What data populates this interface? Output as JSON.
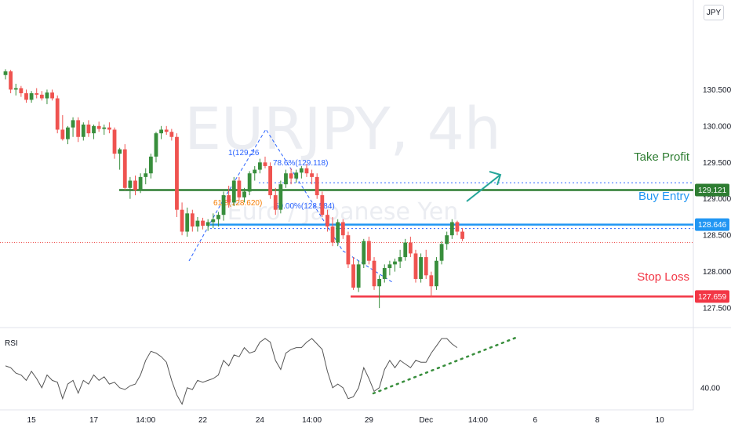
{
  "symbol_badge": "JPY",
  "watermark": {
    "title": "EURJPY, 4h",
    "subtitle": "Euro / Japanese Yen"
  },
  "annotations": {
    "take_profit": "Take Profit",
    "buy_entry": "Buy Entry",
    "stop_loss": "Stop Loss",
    "fib_top": "1(129.26",
    "fib_786": "78.6%(129.118)",
    "fib_618": "61.8(128.620)",
    "fib_50": "50.00%(128.584)"
  },
  "price_tags": {
    "take_profit": "129.121",
    "buy_entry": "128.646",
    "stop_loss": "127.659"
  },
  "rsi_label": "RSI",
  "colors": {
    "up": "#26a69a",
    "up_dark": "#388e3c",
    "down": "#ef5350",
    "take_profit": "#2e7d32",
    "buy_entry": "#2196f3",
    "stop_loss": "#f23645",
    "fib_blue": "#2962ff",
    "fib_orange": "#f57c00"
  },
  "chart_data": [
    {
      "type": "candlestick",
      "title": "EURJPY, 4h",
      "y_ticks": [
        "130.500",
        "130.000",
        "129.500",
        "129.000",
        "128.500",
        "128.000",
        "127.500"
      ],
      "y_tick_values": [
        130.5,
        130.0,
        129.5,
        129.0,
        128.5,
        128.0,
        127.5
      ],
      "ylim": [
        127.34,
        131.3
      ],
      "x_ticks": [
        "15",
        "17",
        "14:00",
        "22",
        "24",
        "14:00",
        "29",
        "Dec",
        "14:00",
        "6",
        "8",
        "10"
      ],
      "x_tick_index": [
        5,
        17,
        27,
        38,
        49,
        59,
        70,
        81,
        91,
        102,
        114,
        126
      ],
      "levels": {
        "take_profit": 129.121,
        "buy_entry": 128.646,
        "stop_loss": 127.659,
        "current": 128.4
      },
      "ohlc": [
        [
          130.7,
          130.78,
          130.64,
          130.75
        ],
        [
          130.75,
          130.77,
          130.45,
          130.5
        ],
        [
          130.5,
          130.58,
          130.42,
          130.52
        ],
        [
          130.52,
          130.55,
          130.4,
          130.45
        ],
        [
          130.45,
          130.5,
          130.32,
          130.36
        ],
        [
          130.36,
          130.48,
          130.32,
          130.45
        ],
        [
          130.45,
          130.52,
          130.38,
          130.43
        ],
        [
          130.43,
          130.48,
          130.35,
          130.38
        ],
        [
          130.38,
          130.5,
          130.3,
          130.46
        ],
        [
          130.46,
          130.5,
          130.35,
          130.38
        ],
        [
          130.38,
          130.42,
          129.9,
          129.95
        ],
        [
          129.95,
          130.15,
          129.8,
          129.82
        ],
        [
          129.82,
          130.0,
          129.75,
          129.98
        ],
        [
          129.98,
          130.12,
          129.85,
          130.08
        ],
        [
          130.08,
          130.12,
          129.78,
          129.85
        ],
        [
          129.85,
          130.05,
          129.8,
          130.02
        ],
        [
          130.02,
          130.08,
          129.85,
          129.9
        ],
        [
          129.9,
          130.02,
          129.82,
          130.0
        ],
        [
          130.0,
          130.06,
          129.92,
          129.96
        ],
        [
          129.96,
          130.02,
          129.88,
          129.98
        ],
        [
          129.98,
          130.05,
          129.9,
          129.95
        ],
        [
          129.95,
          129.98,
          129.55,
          129.62
        ],
        [
          129.62,
          129.7,
          129.4,
          129.68
        ],
        [
          129.68,
          129.75,
          129.12,
          129.15
        ],
        [
          129.15,
          129.3,
          129.0,
          129.25
        ],
        [
          129.25,
          129.32,
          129.05,
          129.12
        ],
        [
          129.12,
          129.35,
          129.08,
          129.3
        ],
        [
          129.3,
          129.42,
          129.2,
          129.35
        ],
        [
          129.35,
          129.62,
          129.28,
          129.58
        ],
        [
          129.58,
          129.92,
          129.5,
          129.9
        ],
        [
          129.9,
          130.0,
          129.82,
          129.95
        ],
        [
          129.95,
          130.0,
          129.88,
          129.92
        ],
        [
          129.92,
          129.96,
          129.8,
          129.85
        ],
        [
          129.85,
          129.9,
          128.75,
          128.85
        ],
        [
          128.85,
          128.95,
          128.5,
          128.55
        ],
        [
          128.55,
          128.88,
          128.48,
          128.8
        ],
        [
          128.8,
          128.85,
          128.55,
          128.62
        ],
        [
          128.62,
          128.75,
          128.55,
          128.7
        ],
        [
          128.7,
          128.74,
          128.58,
          128.63
        ],
        [
          128.63,
          128.72,
          128.56,
          128.68
        ],
        [
          128.68,
          128.8,
          128.6,
          128.72
        ],
        [
          128.72,
          128.82,
          128.62,
          128.78
        ],
        [
          128.78,
          129.1,
          128.7,
          129.05
        ],
        [
          129.05,
          129.18,
          128.88,
          128.95
        ],
        [
          128.95,
          129.3,
          128.9,
          129.25
        ],
        [
          129.25,
          129.3,
          128.98,
          129.02
        ],
        [
          129.02,
          129.15,
          128.95,
          129.1
        ],
        [
          129.1,
          129.38,
          129.05,
          129.35
        ],
        [
          129.35,
          129.45,
          129.25,
          129.4
        ],
        [
          129.4,
          129.55,
          129.35,
          129.5
        ],
        [
          129.5,
          129.58,
          129.42,
          129.45
        ],
        [
          129.45,
          129.5,
          129.0,
          129.05
        ],
        [
          129.05,
          129.15,
          128.78,
          128.85
        ],
        [
          128.85,
          129.25,
          128.8,
          129.2
        ],
        [
          129.2,
          129.4,
          129.15,
          129.35
        ],
        [
          129.35,
          129.42,
          129.2,
          129.28
        ],
        [
          129.28,
          129.4,
          129.22,
          129.36
        ],
        [
          129.36,
          129.45,
          129.28,
          129.42
        ],
        [
          129.42,
          129.48,
          129.3,
          129.35
        ],
        [
          129.35,
          129.4,
          129.2,
          129.3
        ],
        [
          129.3,
          129.35,
          129.0,
          129.05
        ],
        [
          129.05,
          129.1,
          128.75,
          128.78
        ],
        [
          128.78,
          128.85,
          128.55,
          128.62
        ],
        [
          128.62,
          128.75,
          128.35,
          128.4
        ],
        [
          128.4,
          128.72,
          128.35,
          128.68
        ],
        [
          128.68,
          128.72,
          128.45,
          128.5
        ],
        [
          128.5,
          128.55,
          128.05,
          128.1
        ],
        [
          128.1,
          128.2,
          127.75,
          127.78
        ],
        [
          127.78,
          128.15,
          127.72,
          128.1
        ],
        [
          128.1,
          128.45,
          128.05,
          128.42
        ],
        [
          128.42,
          128.48,
          128.1,
          128.15
        ],
        [
          128.15,
          128.2,
          127.75,
          127.8
        ],
        [
          127.8,
          127.95,
          127.5,
          127.9
        ],
        [
          127.9,
          128.1,
          127.85,
          128.05
        ],
        [
          128.05,
          128.15,
          127.95,
          128.1
        ],
        [
          128.1,
          128.18,
          128.0,
          128.14
        ],
        [
          128.14,
          128.3,
          128.05,
          128.2
        ],
        [
          128.2,
          128.45,
          128.15,
          128.4
        ],
        [
          128.4,
          128.48,
          128.2,
          128.25
        ],
        [
          128.25,
          128.3,
          127.85,
          127.9
        ],
        [
          127.9,
          128.25,
          127.85,
          128.2
        ],
        [
          128.2,
          128.3,
          127.9,
          127.95
        ],
        [
          127.95,
          128.0,
          127.65,
          127.8
        ],
        [
          127.8,
          128.2,
          127.75,
          128.15
        ],
        [
          128.15,
          128.42,
          128.1,
          128.38
        ],
        [
          128.38,
          128.55,
          128.3,
          128.5
        ],
        [
          128.5,
          128.72,
          128.45,
          128.68
        ],
        [
          128.68,
          128.7,
          128.5,
          128.55
        ],
        [
          128.55,
          128.6,
          128.42,
          128.45
        ]
      ]
    },
    {
      "type": "line",
      "title": "RSI",
      "y_ticks": [
        "40.00"
      ],
      "ylim": [
        30,
        70
      ],
      "values": [
        52,
        51,
        48,
        47,
        44,
        49,
        45,
        40,
        47,
        44,
        43,
        34,
        42,
        44,
        37,
        44,
        42,
        47,
        44,
        46,
        42,
        43,
        40,
        39,
        41,
        42,
        47,
        55,
        60,
        59,
        57,
        54,
        44,
        36,
        31,
        40,
        39,
        44,
        43,
        44,
        45,
        47,
        55,
        52,
        58,
        57,
        62,
        59,
        60,
        65,
        67,
        65,
        55,
        50,
        59,
        61,
        62,
        62,
        65,
        67,
        64,
        61,
        49,
        40,
        42,
        40,
        34,
        35,
        40,
        51,
        45,
        38,
        40,
        50,
        55,
        51,
        55,
        53,
        51,
        55,
        54,
        54,
        59,
        63,
        67,
        67,
        64,
        62
      ]
    }
  ]
}
